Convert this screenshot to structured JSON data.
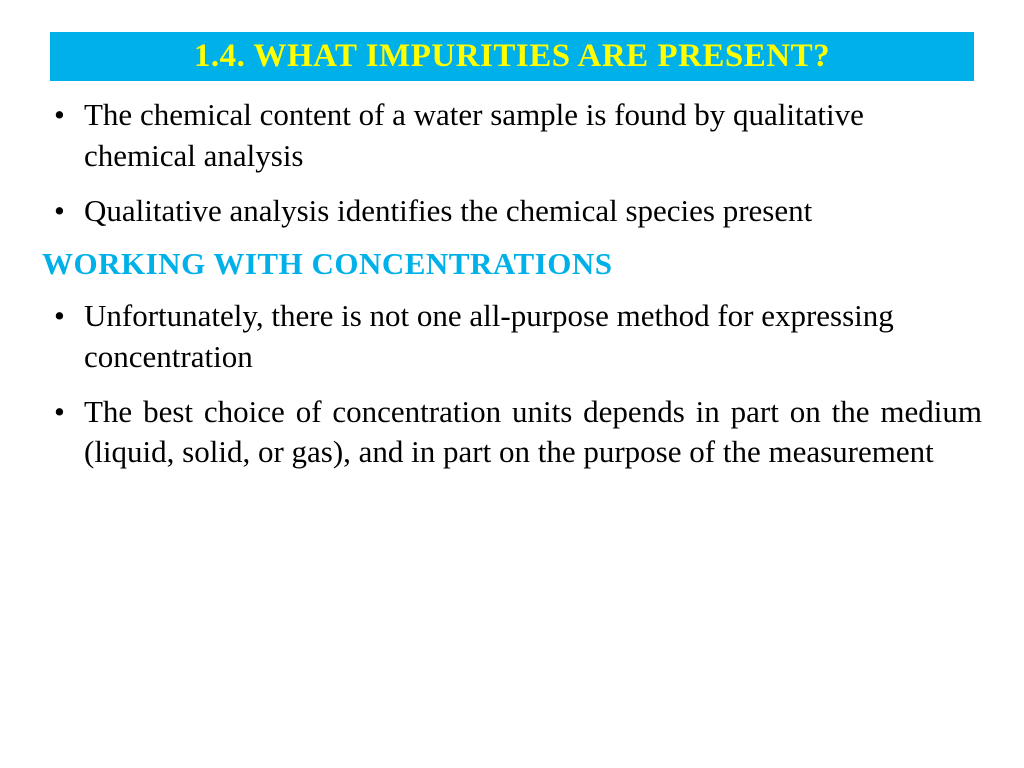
{
  "slide": {
    "title": "1.4. WHAT IMPURITIES ARE PRESENT?",
    "title_bg": "#00b0e8",
    "title_color": "#ffff00",
    "bullets_top": [
      "The chemical content of a water sample is found by qualitative chemical analysis",
      "Qualitative analysis identifies the chemical species present"
    ],
    "subheading": "WORKING WITH CONCENTRATIONS",
    "subheading_color": "#00b0e8",
    "bullets_bottom": [
      "Unfortunately, there is not one all-purpose method for expressing concentration",
      "The best choice of concentration units depends in part on the medium (liquid, solid, or gas), and in part on the purpose of the measurement"
    ],
    "body_color": "#000000",
    "body_fontsize": 31,
    "background": "#ffffff"
  }
}
